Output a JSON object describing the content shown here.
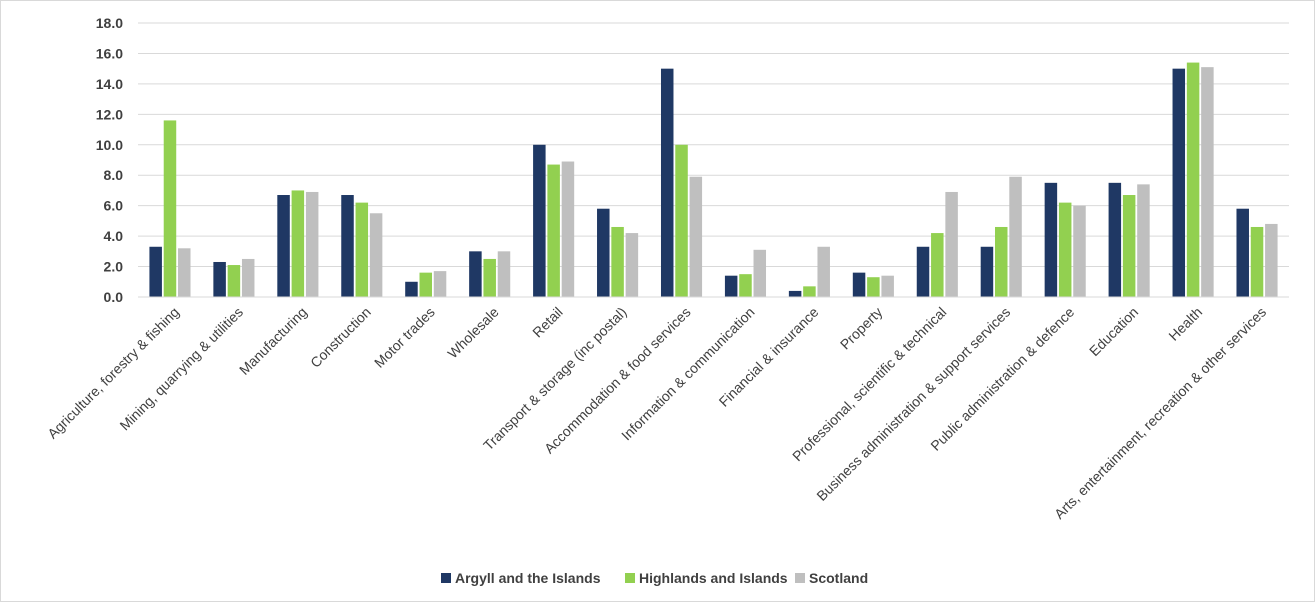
{
  "chart_data": {
    "type": "bar",
    "title": "",
    "xlabel": "",
    "ylabel": "",
    "ylim": [
      0,
      18
    ],
    "ytick_step": 2,
    "ytick_labels": [
      "0.0",
      "2.0",
      "4.0",
      "6.0",
      "8.0",
      "10.0",
      "12.0",
      "14.0",
      "16.0",
      "18.0"
    ],
    "grid": true,
    "legend_position": "bottom",
    "categories": [
      "Agriculture, forestry & fishing",
      "Mining, quarrying & utilities",
      "Manufacturing",
      "Construction",
      "Motor trades",
      "Wholesale",
      "Retail",
      "Transport & storage (inc postal)",
      "Accommodation & food services",
      "Information & communication",
      "Financial & insurance",
      "Property",
      "Professional, scientific & technical",
      "Business administration & support services",
      "Public administration & defence",
      "Education",
      "Health",
      "Arts, entertainment, recreation & other services"
    ],
    "series": [
      {
        "name": "Argyll and the Islands",
        "color": "#1f3864",
        "values": [
          3.3,
          2.3,
          6.7,
          6.7,
          1.0,
          3.0,
          10.0,
          5.8,
          15.0,
          1.4,
          0.4,
          1.6,
          3.3,
          3.3,
          7.5,
          7.5,
          15.0,
          5.8
        ]
      },
      {
        "name": "Highlands and Islands",
        "color": "#92d050",
        "values": [
          11.6,
          2.1,
          7.0,
          6.2,
          1.6,
          2.5,
          8.7,
          4.6,
          10.0,
          1.5,
          0.7,
          1.3,
          4.2,
          4.6,
          6.2,
          6.7,
          15.4,
          4.6
        ]
      },
      {
        "name": "Scotland",
        "color": "#bfbfbf",
        "values": [
          3.2,
          2.5,
          6.9,
          5.5,
          1.7,
          3.0,
          8.9,
          4.2,
          7.9,
          3.1,
          3.3,
          1.4,
          6.9,
          7.9,
          6.0,
          7.4,
          15.1,
          4.8
        ]
      }
    ]
  }
}
